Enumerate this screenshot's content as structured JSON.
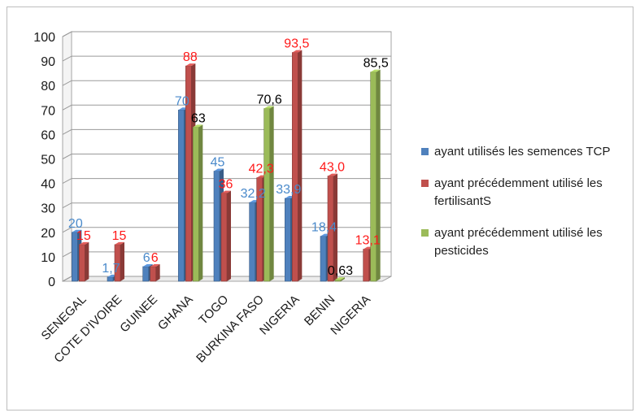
{
  "chart_data": {
    "type": "bar",
    "categories": [
      "SENEGAL",
      "COTE D'IVOIRE",
      "GUINEE",
      "GHANA",
      "TOGO",
      "BURKINA FASO",
      "NIGERIA",
      "BENIN",
      "NIGERIA"
    ],
    "ylim": [
      0,
      100
    ],
    "yticks": [
      "0",
      "10",
      "20",
      "30",
      "40",
      "50",
      "60",
      "70",
      "80",
      "90",
      "100"
    ],
    "grid": true,
    "legend_position": "right",
    "series": [
      {
        "name": "ayant utilisés les semences TCP",
        "color": "#4f81bd",
        "label_color": "#4a8acb",
        "values": [
          20,
          1.7,
          6,
          70,
          45,
          32.2,
          33.9,
          18.4,
          null
        ],
        "labels": [
          "20",
          "1,7",
          "6",
          "70",
          "45",
          "32,2",
          "33,9",
          "18,4",
          ""
        ]
      },
      {
        "name": "ayant précédemment utilisé les fertilisantS",
        "color": "#c0504d",
        "label_color": "#ff1a1a",
        "values": [
          15,
          15,
          6,
          88,
          36,
          42.3,
          93.5,
          43.0,
          13.1
        ],
        "labels": [
          "15",
          "15",
          "6",
          "88",
          "36",
          "42,3",
          "93,5",
          "43,0",
          "13,1"
        ]
      },
      {
        "name": "ayant précédemment utilisé les pesticides",
        "color": "#9bbb59",
        "label_color": "#000000",
        "values": [
          null,
          null,
          null,
          63,
          null,
          70.6,
          null,
          0.63,
          85.5
        ],
        "labels": [
          "",
          "",
          "",
          "63",
          "",
          "70,6",
          "",
          "0,63",
          "85,5"
        ]
      }
    ]
  }
}
